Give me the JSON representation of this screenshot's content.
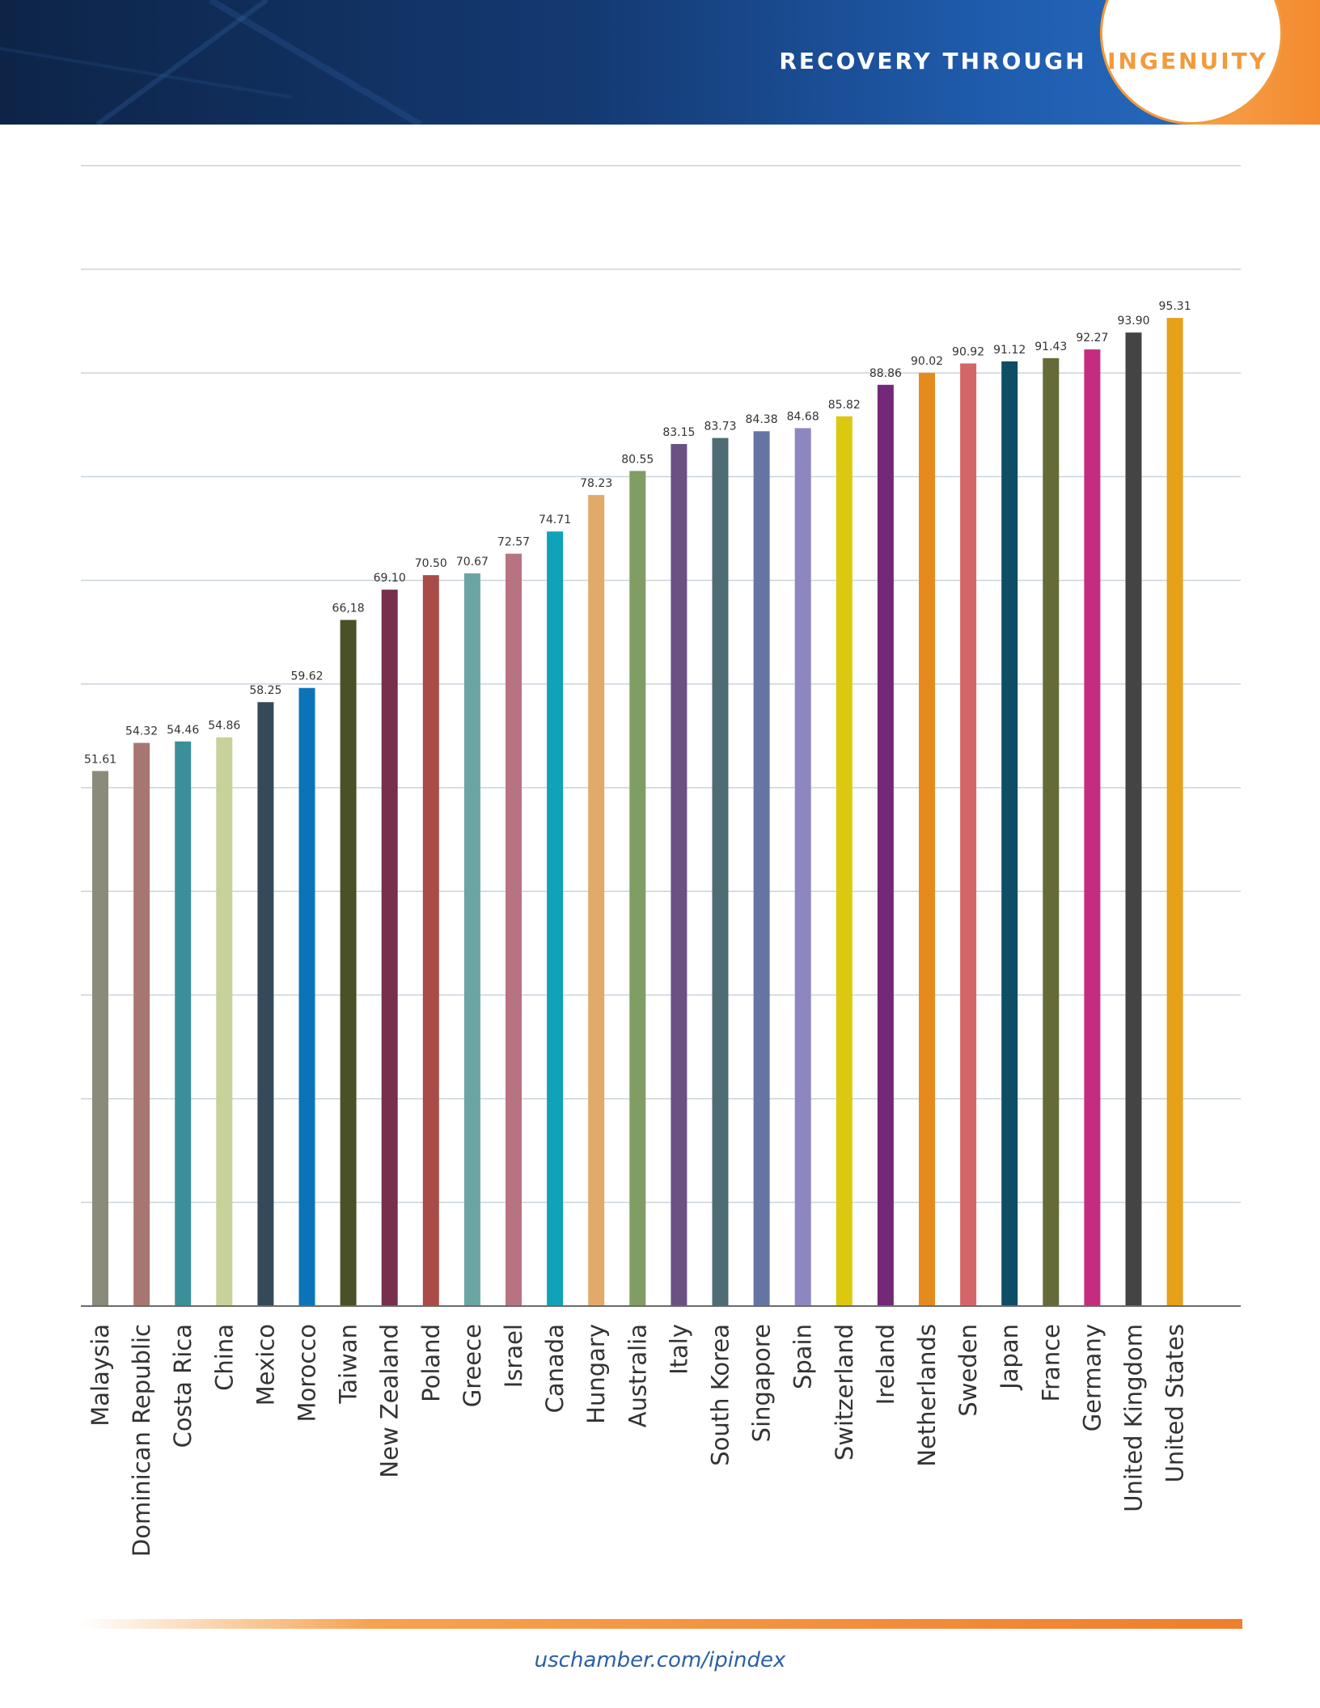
{
  "header": {
    "title_left": "RECOVERY THROUGH",
    "title_right": "INGENUITY",
    "colors": {
      "navy": "#0d2447",
      "blue": "#1f5cad",
      "orange": "#f39a3c"
    }
  },
  "chart_data": {
    "type": "bar",
    "title": "",
    "xlabel": "",
    "ylabel": "",
    "ylim": [
      0,
      100
    ],
    "grid": true,
    "categories": [
      "Malaysia",
      "Dominican Republic",
      "Costa Rica",
      "China",
      "Mexico",
      "Morocco",
      "Taiwan",
      "New Zealand",
      "Poland",
      "Greece",
      "Israel",
      "Canada",
      "Hungary",
      "Australia",
      "Italy",
      "South Korea",
      "Singapore",
      "Spain",
      "Switzerland",
      "Ireland",
      "Netherlands",
      "Sweden",
      "Japan",
      "France",
      "Germany",
      "United Kingdom",
      "United States"
    ],
    "values": [
      51.61,
      54.32,
      54.46,
      54.86,
      58.25,
      59.62,
      66.18,
      69.1,
      70.5,
      70.67,
      72.57,
      74.71,
      78.23,
      80.55,
      83.15,
      83.73,
      84.38,
      84.68,
      85.82,
      88.86,
      90.02,
      90.92,
      91.12,
      91.43,
      92.27,
      93.9,
      95.31
    ],
    "value_labels": [
      "51.61",
      "54.32",
      "54.46",
      "54.86",
      "58.25",
      "59.62",
      "66,18",
      "69.10",
      "70.50",
      "70.67",
      "72.57",
      "74.71",
      "78.23",
      "80.55",
      "83.15",
      "83.73",
      "84.38",
      "84.68",
      "85.82",
      "88.86",
      "90.02",
      "90.92",
      "91.12",
      "91.43",
      "92.27",
      "93.90",
      "95.31"
    ],
    "colors": [
      "#8b8b7b",
      "#a87670",
      "#3b8f9b",
      "#c6d29a",
      "#354a59",
      "#0b74b9",
      "#4b5126",
      "#762f4d",
      "#aa4b48",
      "#6aa5a4",
      "#b87383",
      "#0ea3b8",
      "#e2aa6a",
      "#809d64",
      "#6a5182",
      "#4f6b73",
      "#6475a3",
      "#8c87c1",
      "#dcc90f",
      "#742878",
      "#e58b1e",
      "#d46669",
      "#0d4d66",
      "#656a37",
      "#c52b7f",
      "#444444",
      "#e6a01a"
    ]
  },
  "footer": {
    "url": "uschamber.com/ipindex"
  }
}
